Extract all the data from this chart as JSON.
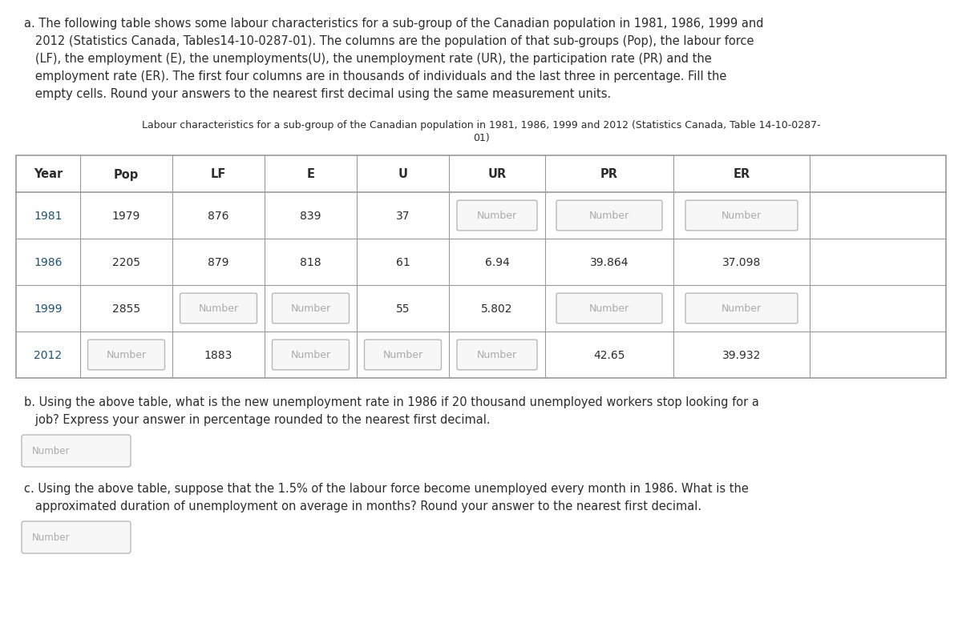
{
  "bg_color": "#ffffff",
  "col_black": "#2c2c2c",
  "col_orange": "#c0392b",
  "col_gray": "#aaaaaa",
  "col_box_border": "#b8b8b8",
  "col_box_fill": "#f7f7f7",
  "col_line": "#999999",
  "col_year": "#1a5276",
  "fs_body": 10.5,
  "fs_caption": 9.0,
  "fs_table": 10.0,
  "fs_header_bold": 10.5,
  "part_a_lines": [
    "a. The following table shows some labour characteristics for a sub-group of the Canadian population in 1981, 1986, 1999 and",
    "   2012 (Statistics Canada, Tables14-10-0287-01). The columns are the population of that sub-groups (Pop), the labour force",
    "   (LF), the employment (E), the unemployments(U), the unemployment rate (UR), the participation rate (PR) and the",
    "   employment rate (ER). The first four columns are in thousands of individuals and the last three in percentage. Fill the",
    "   empty cells. Round your answers to the nearest first decimal using the same measurement units."
  ],
  "caption_lines": [
    "Labour characteristics for a sub-group of the Canadian population in 1981, 1986, 1999 and 2012 (Statistics Canada, Table 14-10-0287-",
    "01)"
  ],
  "col_headers": [
    "Year",
    "Pop",
    "LF",
    "E",
    "U",
    "UR",
    "PR",
    "ER"
  ],
  "rows": [
    {
      "year": "1981",
      "pop": "1979",
      "lf": "876",
      "e": "839",
      "u": "37",
      "ur": "Number",
      "pr": "Number",
      "er": "Number",
      "year_box": false,
      "pop_box": false,
      "lf_box": false,
      "e_box": false,
      "u_box": false,
      "ur_box": true,
      "pr_box": true,
      "er_box": true
    },
    {
      "year": "1986",
      "pop": "2205",
      "lf": "879",
      "e": "818",
      "u": "61",
      "ur": "6.94",
      "pr": "39.864",
      "er": "37.098",
      "year_box": false,
      "pop_box": false,
      "lf_box": false,
      "e_box": false,
      "u_box": false,
      "ur_box": false,
      "pr_box": false,
      "er_box": false
    },
    {
      "year": "1999",
      "pop": "2855",
      "lf": "Number",
      "e": "Number",
      "u": "55",
      "ur": "5.802",
      "pr": "Number",
      "er": "Number",
      "year_box": false,
      "pop_box": false,
      "lf_box": true,
      "e_box": true,
      "u_box": false,
      "ur_box": false,
      "pr_box": true,
      "er_box": true
    },
    {
      "year": "2012",
      "pop": "Number",
      "lf": "1883",
      "e": "Number",
      "u": "Number",
      "ur": "Number",
      "pr": "42.65",
      "er": "39.932",
      "year_box": false,
      "pop_box": true,
      "lf_box": false,
      "e_box": true,
      "u_box": true,
      "ur_box": true,
      "pr_box": false,
      "er_box": false
    }
  ],
  "part_b_line1": "b. Using the above table, what is the new unemployment rate in 1986 if 20 thousand unemployed workers stop looking for a",
  "part_b_line2": "   job? Express your answer in percentage rounded to the nearest first decimal.",
  "part_c_line1": "c. Using the above table, suppose that the 1.5% of the labour force become unemployed every month in 1986. What is the",
  "part_c_line2": "   approximated duration of unemployment on average in months? Round your answer to the nearest first decimal."
}
